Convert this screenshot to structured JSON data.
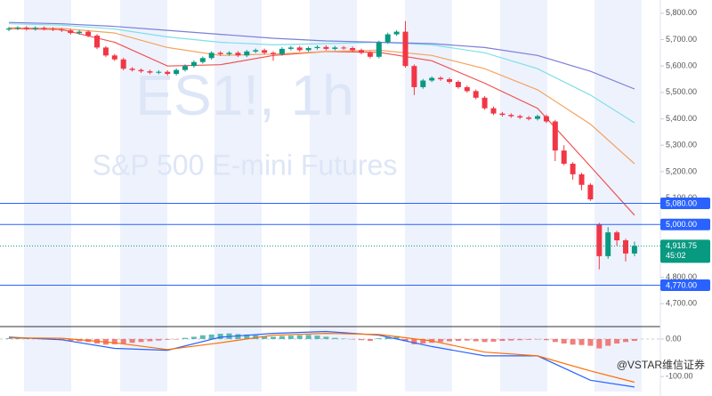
{
  "chart_data": [
    {
      "type": "candlestick",
      "title": "ES1!, 1h",
      "subtitle": "S&P 500 E-mini Futures",
      "up_color": "#089981",
      "down_color": "#f23645",
      "open": [
        5738,
        5742,
        5745,
        5740,
        5744,
        5741,
        5738,
        5735,
        5725,
        5730,
        5715,
        5670,
        5640,
        5625,
        5590,
        5585,
        5580,
        5575,
        5578,
        5570,
        5585,
        5600,
        5615,
        5630,
        5650,
        5645,
        5650,
        5640,
        5655,
        5660,
        5650,
        5645,
        5665,
        5670,
        5660,
        5668,
        5672,
        5665,
        5670,
        5668,
        5660,
        5650,
        5635,
        5690,
        5720,
        5730,
        5600,
        5520,
        5545,
        5555,
        5550,
        5540,
        5520,
        5505,
        5480,
        5440,
        5420,
        5415,
        5410,
        5405,
        5400,
        5410,
        5390,
        5280,
        5230,
        5190,
        5150,
        5000,
        4880,
        4970,
        4940,
        4890
      ],
      "high": [
        5748,
        5751,
        5751,
        5750,
        5750,
        5747,
        5744,
        5741,
        5736,
        5736,
        5721,
        5676,
        5646,
        5631,
        5596,
        5591,
        5586,
        5584,
        5584,
        5591,
        5606,
        5621,
        5636,
        5656,
        5656,
        5656,
        5656,
        5661,
        5666,
        5666,
        5656,
        5671,
        5676,
        5676,
        5674,
        5678,
        5678,
        5676,
        5676,
        5674,
        5666,
        5656,
        5696,
        5726,
        5736,
        5770,
        5606,
        5551,
        5561,
        5561,
        5556,
        5546,
        5526,
        5511,
        5486,
        5446,
        5426,
        5421,
        5416,
        5411,
        5416,
        5416,
        5396,
        5300,
        5236,
        5196,
        5156,
        5006,
        4990,
        4976,
        4946,
        4935
      ],
      "low": [
        5732,
        5736,
        5734,
        5734,
        5735,
        5732,
        5729,
        5719,
        5719,
        5709,
        5664,
        5634,
        5619,
        5584,
        5579,
        5574,
        5569,
        5569,
        5564,
        5564,
        5579,
        5594,
        5609,
        5624,
        5639,
        5639,
        5634,
        5634,
        5649,
        5644,
        5620,
        5639,
        5659,
        5654,
        5654,
        5662,
        5659,
        5659,
        5662,
        5654,
        5644,
        5629,
        5629,
        5684,
        5714,
        5594,
        5490,
        5514,
        5539,
        5544,
        5534,
        5514,
        5499,
        5474,
        5434,
        5414,
        5409,
        5404,
        5399,
        5394,
        5394,
        5384,
        5240,
        5224,
        5170,
        5130,
        5089,
        4830,
        4870,
        4920,
        4860,
        4880
      ],
      "close": [
        5742,
        5745,
        5740,
        5744,
        5741,
        5738,
        5735,
        5725,
        5730,
        5715,
        5670,
        5640,
        5625,
        5590,
        5585,
        5580,
        5575,
        5578,
        5570,
        5585,
        5600,
        5615,
        5630,
        5650,
        5645,
        5650,
        5640,
        5655,
        5660,
        5650,
        5645,
        5665,
        5670,
        5660,
        5668,
        5672,
        5665,
        5670,
        5668,
        5660,
        5650,
        5635,
        5690,
        5720,
        5730,
        5600,
        5520,
        5545,
        5555,
        5550,
        5540,
        5520,
        5505,
        5480,
        5440,
        5420,
        5415,
        5410,
        5405,
        5400,
        5410,
        5390,
        5280,
        5230,
        5190,
        5150,
        5095,
        4880,
        4970,
        4940,
        4890,
        4918.75
      ],
      "lines": [
        {
          "color": "#ef5350",
          "x": [
            0,
            6,
            12,
            18,
            24,
            30,
            36,
            42,
            48,
            54,
            60,
            66,
            71
          ],
          "values": [
            5742,
            5738,
            5690,
            5600,
            5605,
            5640,
            5655,
            5652,
            5620,
            5535,
            5440,
            5220,
            5035
          ]
        },
        {
          "color": "#f4a460",
          "x": [
            0,
            6,
            12,
            18,
            24,
            30,
            36,
            42,
            48,
            54,
            60,
            66,
            71
          ],
          "values": [
            5745,
            5742,
            5725,
            5670,
            5640,
            5645,
            5655,
            5660,
            5640,
            5590,
            5510,
            5380,
            5230
          ]
        },
        {
          "color": "#7fdfe8",
          "x": [
            0,
            6,
            12,
            18,
            24,
            30,
            36,
            42,
            48,
            54,
            60,
            66,
            71
          ],
          "values": [
            5760,
            5755,
            5740,
            5710,
            5690,
            5680,
            5685,
            5690,
            5680,
            5650,
            5590,
            5490,
            5385
          ]
        },
        {
          "color": "#7b7fd8",
          "x": [
            0,
            6,
            12,
            18,
            24,
            30,
            36,
            42,
            48,
            54,
            60,
            66,
            71
          ],
          "values": [
            5765,
            5760,
            5750,
            5735,
            5720,
            5705,
            5695,
            5690,
            5685,
            5670,
            5640,
            5580,
            5513
          ]
        }
      ],
      "price_lines": [
        {
          "value": 5080,
          "label": "5,080.00",
          "color": "#2962ff"
        },
        {
          "value": 5000,
          "label": "5,000.00",
          "color": "#2962ff"
        },
        {
          "value": 4770,
          "label": "4,770.00",
          "color": "#2962ff"
        }
      ],
      "last_price": {
        "value": 4918.75,
        "label": "4,918.75",
        "countdown": "45:02",
        "color": "#089981"
      },
      "ylim": [
        4620,
        5850
      ],
      "yticks": [
        {
          "value": 5800,
          "label": "5,800.00"
        },
        {
          "value": 5700,
          "label": "5,700.00"
        },
        {
          "value": 5600,
          "label": "5,600.00"
        },
        {
          "value": 5500,
          "label": "5,500.00"
        },
        {
          "value": 5400,
          "label": "5,400.00"
        },
        {
          "value": 5300,
          "label": "5,300.00"
        },
        {
          "value": 5200,
          "label": "5,200.00"
        },
        {
          "value": 5100,
          "label": "5,100.00"
        },
        {
          "value": 4800,
          "label": "4,800.00"
        },
        {
          "value": 4700,
          "label": "4,700.00"
        }
      ]
    },
    {
      "type": "macd",
      "up_color": "#26a69a",
      "down_color": "#ef5350",
      "histogram": [
        2,
        3,
        2,
        1,
        0,
        -2,
        -3,
        -5,
        -6,
        -8,
        -12,
        -15,
        -14,
        -12,
        -10,
        -8,
        -6,
        -4,
        -2,
        -1,
        3,
        6,
        10,
        12,
        14,
        15,
        13,
        12,
        10,
        8,
        6,
        8,
        9,
        10,
        11,
        9,
        6,
        3,
        1,
        -1,
        -3,
        -5,
        2,
        6,
        8,
        -6,
        -14,
        -12,
        -10,
        -8,
        -6,
        -5,
        -4,
        -6,
        -8,
        -7,
        -5,
        -4,
        -3,
        -2,
        -1,
        -3,
        -8,
        -12,
        -15,
        -16,
        -18,
        -25,
        -18,
        -12,
        -8,
        -5
      ],
      "lines": [
        {
          "color": "#2962ff",
          "x": [
            0,
            6,
            12,
            18,
            24,
            30,
            36,
            42,
            48,
            54,
            60,
            66,
            71
          ],
          "values": [
            5,
            -2,
            -25,
            -30,
            5,
            15,
            20,
            10,
            -20,
            -45,
            -45,
            -110,
            -128
          ]
        },
        {
          "color": "#ff6d00",
          "x": [
            0,
            6,
            12,
            18,
            24,
            30,
            36,
            42,
            48,
            54,
            60,
            66,
            71
          ],
          "values": [
            3,
            2,
            -10,
            -28,
            -10,
            10,
            15,
            12,
            -5,
            -35,
            -45,
            -85,
            -115
          ]
        }
      ],
      "ylim": [
        -140,
        26
      ],
      "yticks": [
        {
          "value": 0,
          "label": "0.00"
        },
        {
          "value": -100,
          "label": "-100.00"
        }
      ]
    }
  ],
  "watermark": "@VSTAR维信证券"
}
